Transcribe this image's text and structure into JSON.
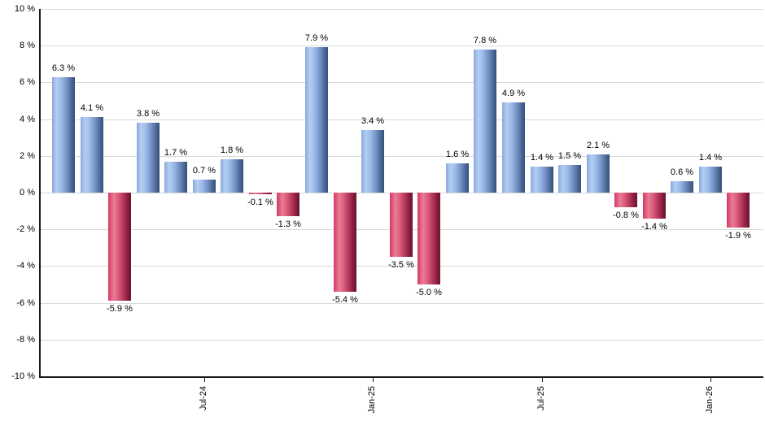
{
  "chart_data": {
    "type": "bar",
    "title": "",
    "xlabel": "",
    "ylabel": "",
    "ylim": [
      -10,
      10
    ],
    "ytick_step": 2,
    "grid": true,
    "legend": "none",
    "ytick_labels": [
      "10 %",
      "8 %",
      "6 %",
      "4 %",
      "2 %",
      "0 %",
      "-2 %",
      "-4 %",
      "-6 %",
      "-8 %",
      "-10 %"
    ],
    "values": [
      6.3,
      4.1,
      -5.9,
      3.8,
      1.7,
      0.7,
      1.8,
      -0.1,
      -1.3,
      7.9,
      -5.4,
      3.4,
      -3.5,
      -5.0,
      1.6,
      7.8,
      4.9,
      1.4,
      1.5,
      2.1,
      -0.8,
      -1.4,
      0.6,
      1.4,
      -1.9
    ],
    "bar_value_labels": [
      "6.3 %",
      "4.1 %",
      "-5.9 %",
      "3.8 %",
      "1.7 %",
      "0.7 %",
      "1.8 %",
      "-0.1 %",
      "-1.3 %",
      "7.9 %",
      "-5.4 %",
      "3.4 %",
      "-3.5 %",
      "-5.0 %",
      "1.6 %",
      "7.8 %",
      "4.9 %",
      "1.4 %",
      "1.5 %",
      "2.1 %",
      "-0.8 %",
      "-1.4 %",
      "0.6 %",
      "1.4 %",
      "-1.9 %"
    ],
    "x_ticks": [
      {
        "index": 5,
        "label": "Jul-24"
      },
      {
        "index": 11,
        "label": "Jan-25"
      },
      {
        "index": 17,
        "label": "Jul-25"
      },
      {
        "index": 23,
        "label": "Jan-26"
      }
    ],
    "colors": {
      "positive_gradient": [
        "#88a9dd",
        "#b4cef2",
        "#9dbbe8",
        "#7191c4",
        "#4c6794",
        "#33507e"
      ],
      "negative_gradient": [
        "#d63863",
        "#ea7d96",
        "#d95c7c",
        "#ad3156",
        "#7d1837",
        "#6d1430"
      ],
      "gridline": "#d9d9d9",
      "axis": "#1a1a1a",
      "label_text": "#000000",
      "background": "#ffffff"
    }
  }
}
